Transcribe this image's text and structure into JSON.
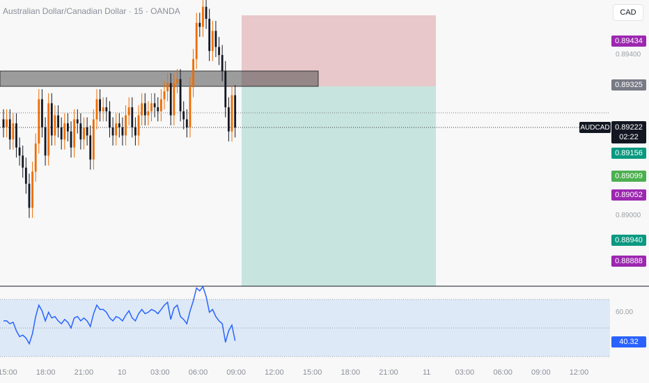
{
  "header": {
    "title": "Australian Dollar/Canadian Dollar · 15 · OANDA",
    "currency": "CAD"
  },
  "colors": {
    "up": "#ef6c00",
    "down": "#131722",
    "stop_zone": "#e8c8ca",
    "target_zone": "#c7e5de",
    "rsi_line": "#2962ff",
    "rsi_band": "#dde9f7"
  },
  "price_axis": {
    "ticks": [
      "0.89400",
      "0.89000"
    ],
    "labels": [
      {
        "text": "0.89434",
        "color": "#9c27b0",
        "value": 0.89434
      },
      {
        "text": "0.89325",
        "color": "#787b86",
        "value": 0.89325
      },
      {
        "text": "0.89156",
        "color": "#089981",
        "value": 0.89156
      },
      {
        "text": "0.89099",
        "color": "#4caf50",
        "value": 0.89099
      },
      {
        "text": "0.89052",
        "color": "#9c27b0",
        "value": 0.89052
      },
      {
        "text": "0.88940",
        "color": "#089981",
        "value": 0.8894
      },
      {
        "text": "0.88888",
        "color": "#9c27b0",
        "value": 0.88888
      }
    ],
    "current": {
      "symbol": "AUDCAD",
      "price": "0.89222",
      "countdown": "02:22"
    }
  },
  "rsi": {
    "level_label": "60.00",
    "current_label": "40.32",
    "upper": 70,
    "mid": 50,
    "lower": 30
  },
  "time_axis": [
    "15:00",
    "18:00",
    "21:00",
    "10",
    "03:00",
    "06:00",
    "09:00",
    "12:00",
    "15:00",
    "18:00",
    "21:00",
    "11",
    "03:00",
    "06:00",
    "09:00",
    "12:00"
  ],
  "chart_data": {
    "type": "candlestick",
    "series_close": [
      0.8922,
      0.8924,
      0.8919,
      0.8923,
      0.8917,
      0.8915,
      0.8912,
      0.8908,
      0.8902,
      0.8911,
      0.8918,
      0.8929,
      0.8922,
      0.8915,
      0.8928,
      0.892,
      0.8925,
      0.8922,
      0.8919,
      0.8923,
      0.8921,
      0.8917,
      0.8924,
      0.8923,
      0.8919,
      0.8922,
      0.892,
      0.8914,
      0.8924,
      0.8929,
      0.8926,
      0.8927,
      0.8926,
      0.8922,
      0.892,
      0.8923,
      0.8922,
      0.892,
      0.8925,
      0.8927,
      0.8922,
      0.892,
      0.8925,
      0.8928,
      0.8925,
      0.8926,
      0.8928,
      0.8927,
      0.8926,
      0.8929,
      0.8931,
      0.8933,
      0.8925,
      0.8933,
      0.8934,
      0.8926,
      0.8924,
      0.8922,
      0.8932,
      0.8939,
      0.8948,
      0.8947,
      0.8952,
      0.8949,
      0.8941,
      0.8946,
      0.8942,
      0.894,
      0.8936,
      0.8927,
      0.8921,
      0.893,
      0.8922
    ],
    "rsi_values": [
      55,
      55,
      53,
      54,
      48,
      44,
      45,
      43,
      39,
      46,
      58,
      66,
      62,
      55,
      61,
      57,
      58,
      55,
      53,
      56,
      54,
      50,
      57,
      58,
      55,
      57,
      55,
      51,
      60,
      66,
      63,
      63,
      61,
      57,
      55,
      58,
      57,
      55,
      59,
      62,
      57,
      55,
      60,
      63,
      60,
      61,
      63,
      62,
      60,
      63,
      66,
      68,
      56,
      64,
      66,
      58,
      56,
      53,
      62,
      69,
      78,
      76,
      79,
      72,
      61,
      63,
      58,
      55,
      53,
      40,
      48,
      52,
      41
    ]
  }
}
